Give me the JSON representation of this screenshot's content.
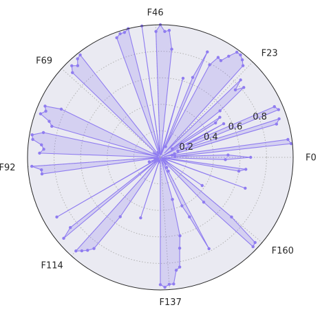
{
  "chart_data": {
    "type": "radar",
    "title": "",
    "angular_labels": [
      "F0",
      "F23",
      "F46",
      "F69",
      "F92",
      "F114",
      "F137",
      "F160"
    ],
    "radial_ticks": [
      "0.2",
      "0.4",
      "0.6",
      "0.8"
    ],
    "rlim": [
      0,
      1.0
    ],
    "grid": true,
    "legend": "none",
    "features": 180,
    "values": [
      0.68,
      0.51,
      0.11,
      0.99,
      0.97,
      0.09,
      0.03,
      0.11,
      0.91,
      0.94,
      0.14,
      0.96,
      0.94,
      0.23,
      0.54,
      0.01,
      0.49,
      0.54,
      0.11,
      0.57,
      0.82,
      0.76,
      0.84,
      0.05,
      0.93,
      0.96,
      0.98,
      0.98,
      0.92,
      0.86,
      0.87,
      0.79,
      0.09,
      0.87,
      0.65,
      0.02,
      0.06,
      0.62,
      0.07,
      0.02,
      0.03,
      0.02,
      0.82,
      0.96,
      0.95,
      1.0,
      0.95,
      0.02,
      0.03,
      1.0,
      0.01,
      0.03,
      1.0,
      0.98,
      0.98,
      0.96,
      0.03,
      0.05,
      0.03,
      0.05,
      0.03,
      0.03,
      0.02,
      0.04,
      0.98,
      0.97,
      0.93,
      0.96,
      0.92,
      0.01,
      0.02,
      0.03,
      0.07,
      0.06,
      0.02,
      0.06,
      0.02,
      0.83,
      0.95,
      0.93,
      0.96,
      0.88,
      0.85,
      0.02,
      0.9,
      0.98,
      0.97,
      0.9,
      0.88,
      0.91,
      0.02,
      0.01,
      0.97,
      0.9,
      0.9,
      0.02,
      0.03,
      0.05,
      0.03,
      0.01,
      0.02,
      0.09,
      0.07,
      0.01,
      0.03,
      0.9,
      0.02,
      0.03,
      0.02,
      0.86,
      0.95,
      0.03,
      0.06,
      0.01,
      0.95,
      0.92,
      0.89,
      0.85,
      0.54,
      0.02,
      0.04,
      0.02,
      0.03,
      0.03,
      0.02,
      0.03,
      0.48,
      0.02,
      0.05,
      0.02,
      0.01,
      0.02,
      0.04,
      0.02,
      0.01,
      0.96,
      0.98,
      0.96,
      0.96,
      0.86,
      0.84,
      0.7,
      0.61,
      0.33,
      0.03,
      0.02,
      0.01,
      0.4,
      0.5,
      0.78,
      0.12,
      0.09,
      0.06,
      0.02,
      0.07,
      0.02,
      0.03,
      0.47,
      0.97,
      0.96,
      0.7,
      0.04,
      0.01,
      0.38,
      0.02,
      0.06,
      0.03,
      0.02,
      0.02,
      0.03,
      0.68,
      0.02,
      0.03,
      0.01,
      0.03,
      0.6,
      0.65,
      0.03,
      0.01,
      0.49
    ]
  }
}
